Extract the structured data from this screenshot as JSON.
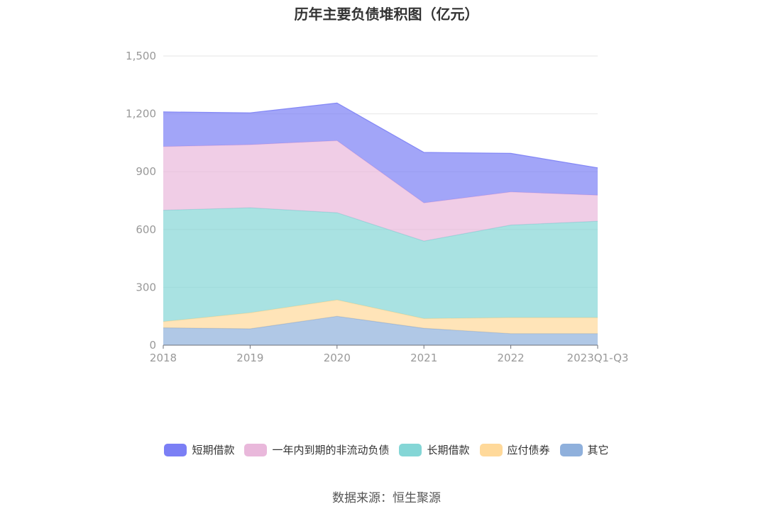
{
  "chart_data": {
    "type": "area",
    "stacked": true,
    "title": "历年主要负债堆积图（亿元）",
    "categories": [
      "2018",
      "2019",
      "2020",
      "2021",
      "2022",
      "2023Q1-Q3"
    ],
    "ylim": [
      0,
      1500
    ],
    "yticks": [
      "0",
      "300",
      "600",
      "900",
      "1,200",
      "1,500"
    ],
    "grid": true,
    "legend_position": "bottom",
    "series": [
      {
        "name": "其它",
        "color": "#8fb0dc",
        "values": [
          90,
          85,
          150,
          88,
          60,
          60
        ]
      },
      {
        "name": "应付债券",
        "color": "#ffd99a",
        "values": [
          32,
          83,
          85,
          50,
          83,
          83
        ]
      },
      {
        "name": "长期借款",
        "color": "#84d6d6",
        "values": [
          578,
          545,
          452,
          402,
          480,
          500
        ]
      },
      {
        "name": "一年内到期的非流动负债",
        "color": "#e9b8db",
        "values": [
          330,
          327,
          374,
          198,
          172,
          135
        ]
      },
      {
        "name": "短期借款",
        "color": "#7b7ff5",
        "values": [
          180,
          165,
          195,
          262,
          200,
          142
        ]
      }
    ]
  },
  "legend": [
    {
      "label": "短期借款",
      "color": "#7b7ff5"
    },
    {
      "label": "一年内到期的非流动负债",
      "color": "#e9b8db"
    },
    {
      "label": "长期借款",
      "color": "#84d6d6"
    },
    {
      "label": "应付债券",
      "color": "#ffd99a"
    },
    {
      "label": "其它",
      "color": "#8fb0dc"
    }
  ],
  "source": "数据来源：恒生聚源"
}
